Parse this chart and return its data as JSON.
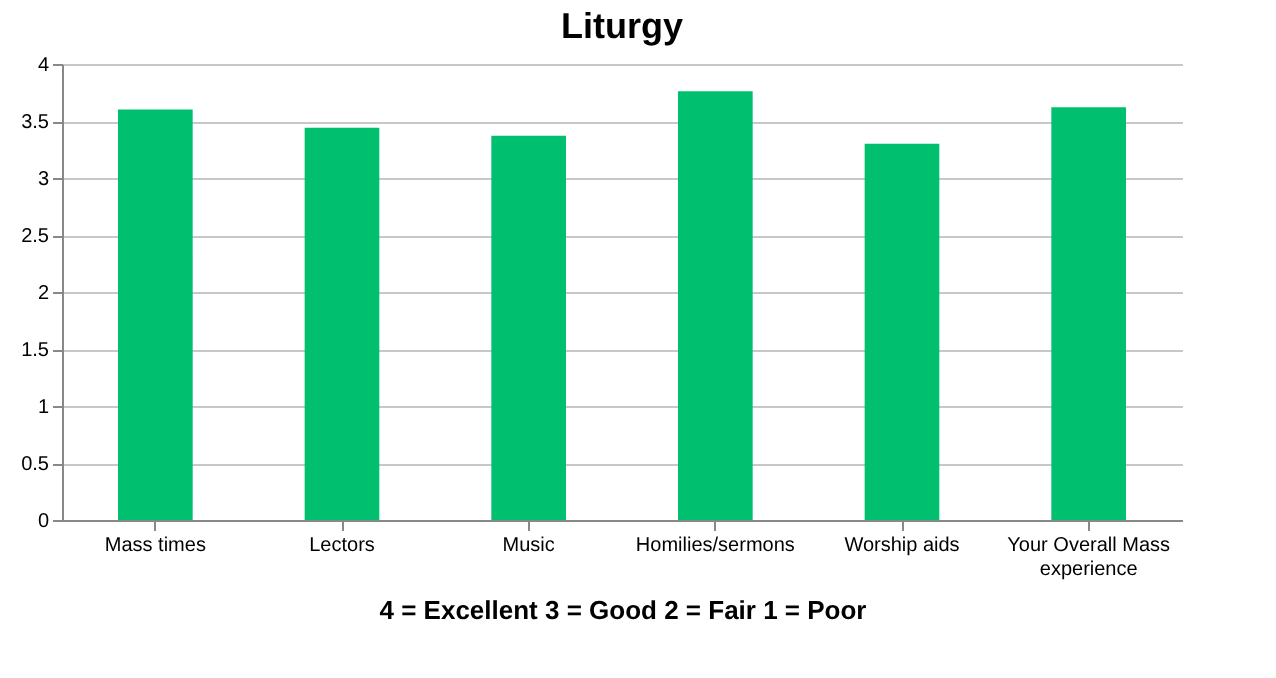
{
  "chart_data": {
    "type": "bar",
    "title": "Liturgy",
    "xlabel": "4 = Excellent 3 = Good 2 = Fair  1 = Poor",
    "categories": [
      "Mass times",
      "Lectors",
      "Music",
      "Homilies/sermons",
      "Worship aids",
      "Your Overall Mass experience"
    ],
    "values": [
      3.6,
      3.44,
      3.37,
      3.76,
      3.3,
      3.62
    ],
    "color": "#00bf6f",
    "ylim": [
      0,
      4
    ],
    "yticks": [
      0,
      0.5,
      1,
      1.5,
      2,
      2.5,
      3,
      3.5,
      4
    ],
    "grid": "y"
  }
}
